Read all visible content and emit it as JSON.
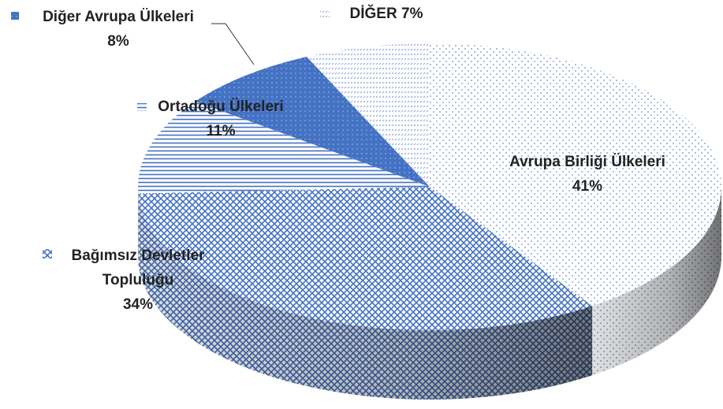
{
  "chart_data": {
    "type": "pie3d",
    "categories": [
      "Avrupa Birliği Ülkeleri",
      "Bağımsız Devletler Topluluğu",
      "Ortadoğu Ülkeleri",
      "Diğer Avrupa Ülkeleri",
      "DİĞER"
    ],
    "values": [
      41,
      34,
      11,
      8,
      7
    ],
    "value_labels": [
      "41%",
      "34%",
      "11%",
      "8%",
      "7%"
    ],
    "colors": [
      "#8faadc",
      "#4472c4",
      "#4472c4",
      "#4472c4",
      "#8faadc"
    ]
  }
}
